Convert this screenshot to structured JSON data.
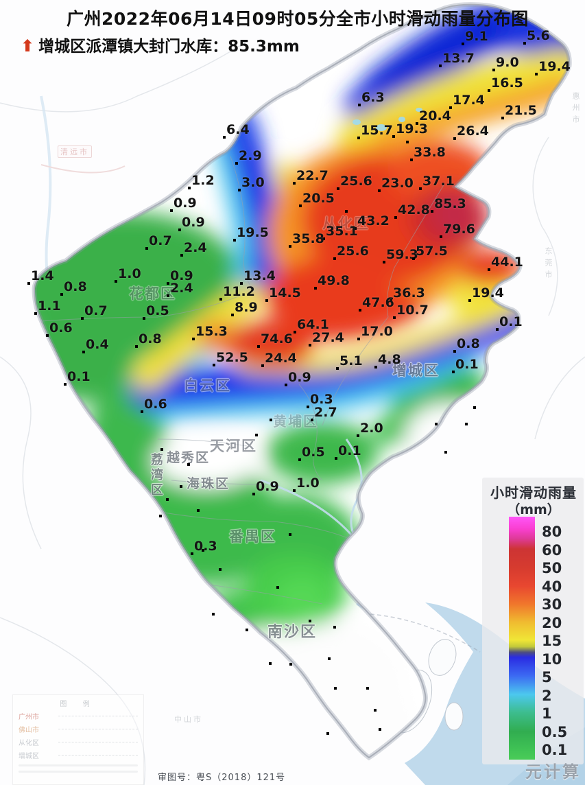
{
  "title": "广州2022年06月14日09时05分全市小时滑动雨量分布图",
  "subtitle": {
    "arrow": "⬆",
    "text": "增城区派潭镇大封门水库：85.3mm"
  },
  "legend": {
    "title": "小时滑动雨量",
    "unit": "（mm）",
    "ticks": [
      "80",
      "60",
      "50",
      "40",
      "30",
      "20",
      "15",
      "10",
      "5",
      "2",
      "1",
      "0.5",
      "0.1"
    ]
  },
  "colors": {
    "extreme": "#c22a4a",
    "heavy_red": "#e73a1f",
    "orange": "#f59426",
    "yellow": "#f0e238",
    "blue": "#2137ea",
    "dark_blue": "#1128d6",
    "cyan": "#4cc8ee",
    "green": "#3ab04a",
    "water": "#b9d6ea",
    "arrow_red": "#d4391c"
  },
  "stations": [
    [
      "9.1",
      678,
      43
    ],
    [
      "5.6",
      768,
      42
    ],
    [
      "13.7",
      645,
      75
    ],
    [
      "9.0",
      723,
      81
    ],
    [
      "19.4",
      785,
      87
    ],
    [
      "16.5",
      716,
      111
    ],
    [
      "6.3",
      527,
      132
    ],
    [
      "17.4",
      660,
      136
    ],
    [
      "21.5",
      736,
      151
    ],
    [
      "20.4",
      611,
      159
    ],
    [
      "19.3",
      577,
      178
    ],
    [
      "15.7",
      526,
      180
    ],
    [
      "26.4",
      666,
      181
    ],
    [
      "6.4",
      330,
      179
    ],
    [
      "33.8",
      603,
      212
    ],
    [
      "2.9",
      348,
      217
    ],
    [
      "22.7",
      432,
      246
    ],
    [
      "25.6",
      496,
      254
    ],
    [
      "23.0",
      556,
      257
    ],
    [
      "37.1",
      616,
      254
    ],
    [
      "1.2",
      279,
      253
    ],
    [
      "3.0",
      352,
      256
    ],
    [
      "20.5",
      441,
      279
    ],
    [
      "85.3",
      633,
      287
    ],
    [
      "42.8",
      580,
      296
    ],
    [
      "0.9",
      253,
      286
    ],
    [
      "43.2",
      521,
      312
    ],
    [
      "0.9",
      265,
      314
    ],
    [
      "35.1",
      475,
      327
    ],
    [
      "79.6",
      646,
      324
    ],
    [
      "35.8",
      426,
      338
    ],
    [
      "0.7",
      217,
      341
    ],
    [
      "2.4",
      268,
      351
    ],
    [
      "19.5",
      345,
      329
    ],
    [
      "25.6",
      491,
      356
    ],
    [
      "59.3",
      563,
      361
    ],
    [
      "57.5",
      606,
      356
    ],
    [
      "44.1",
      716,
      372
    ],
    [
      "1.4",
      45,
      392
    ],
    [
      "1.0",
      172,
      389
    ],
    [
      "0.9",
      248,
      392
    ],
    [
      "0.8",
      93,
      408
    ],
    [
      "2.4",
      248,
      410
    ],
    [
      "13.4",
      355,
      392
    ],
    [
      "49.8",
      463,
      399
    ],
    [
      "11.2",
      325,
      415
    ],
    [
      "14.5",
      392,
      417
    ],
    [
      "36.3",
      573,
      417
    ],
    [
      "19.4",
      688,
      417
    ],
    [
      "1.1",
      55,
      436
    ],
    [
      "0.7",
      123,
      443
    ],
    [
      "0.5",
      213,
      443
    ],
    [
      "8.9",
      342,
      438
    ],
    [
      "47.6",
      528,
      431
    ],
    [
      "10.7",
      578,
      442
    ],
    [
      "0.6",
      72,
      468
    ],
    [
      "15.3",
      285,
      473
    ],
    [
      "64.1",
      433,
      463
    ],
    [
      "17.0",
      526,
      473
    ],
    [
      "27.4",
      455,
      482
    ],
    [
      "0.1",
      728,
      459
    ],
    [
      "74.6",
      380,
      484
    ],
    [
      "0.8",
      202,
      484
    ],
    [
      "0.4",
      125,
      492
    ],
    [
      "52.5",
      315,
      511
    ],
    [
      "24.4",
      386,
      512
    ],
    [
      "5.1",
      495,
      516
    ],
    [
      "4.8",
      551,
      514
    ],
    [
      "0.8",
      666,
      491
    ],
    [
      "0.1",
      664,
      521
    ],
    [
      "0.1",
      98,
      539
    ],
    [
      "0.9",
      420,
      540
    ],
    [
      "0.6",
      210,
      579
    ],
    [
      "0.3",
      452,
      572
    ],
    [
      "2.7",
      458,
      591
    ],
    [
      "2.0",
      525,
      614
    ],
    [
      "0.5",
      440,
      649
    ],
    [
      "0.1",
      493,
      647
    ],
    [
      "0.9",
      373,
      699
    ],
    [
      "1.0",
      432,
      694
    ],
    [
      "0.3",
      283,
      786
    ]
  ],
  "extra_dots": [
    [
      503,
      306
    ],
    [
      592,
      205
    ],
    [
      690,
      592
    ],
    [
      678,
      616
    ],
    [
      634,
      616
    ],
    [
      648,
      657
    ],
    [
      403,
      854
    ],
    [
      309,
      893
    ],
    [
      358,
      916
    ],
    [
      450,
      903
    ],
    [
      486,
      912
    ],
    [
      478,
      958
    ],
    [
      392,
      965
    ],
    [
      422,
      966
    ],
    [
      487,
      1001
    ],
    [
      534,
      1001
    ],
    [
      545,
      1033
    ],
    [
      552,
      1061
    ],
    [
      476,
      1067
    ],
    [
      234,
      653
    ],
    [
      273,
      675
    ],
    [
      262,
      707
    ],
    [
      287,
      742
    ],
    [
      242,
      726
    ],
    [
      393,
      610
    ],
    [
      372,
      632
    ],
    [
      421,
      777
    ],
    [
      294,
      800
    ],
    [
      319,
      828
    ],
    [
      232,
      750
    ]
  ],
  "districts": [
    [
      "花都区",
      188,
      412,
      0.5,
      0,
      21
    ],
    [
      "从化区",
      470,
      310,
      0.35,
      0,
      21
    ],
    [
      "白云区",
      268,
      546,
      0.55,
      0,
      21
    ],
    [
      "增城区",
      572,
      524,
      0.75,
      0,
      21
    ],
    [
      "黄埔区",
      398,
      598,
      0.4,
      0,
      20
    ],
    [
      "天河区",
      306,
      634,
      0.7,
      0,
      21
    ],
    [
      "越秀区",
      243,
      652,
      0.8,
      0,
      19
    ],
    [
      "荔湾区",
      214,
      660,
      0.8,
      1,
      18
    ],
    [
      "海珠区",
      272,
      690,
      0.8,
      0,
      19
    ],
    [
      "番禺区",
      334,
      766,
      0.6,
      0,
      21
    ],
    [
      "南沙区",
      390,
      903,
      0.8,
      0,
      22
    ]
  ],
  "basemap_labels": [
    [
      "清远市",
      84,
      212,
      0,
      1
    ],
    [
      "惠州市",
      831,
      134,
      1,
      0
    ],
    [
      "东莞市",
      791,
      360,
      1,
      0
    ],
    [
      "中山市",
      254,
      1040,
      0,
      0
    ]
  ],
  "inset": {
    "title": "图 例",
    "rows": [
      [
        "广州市",
        "#c25648"
      ],
      [
        "佛山市",
        "#cf8a52"
      ],
      [
        "从化区",
        "#9aa0a8"
      ],
      [
        "增城区",
        "#9aa0a8"
      ]
    ]
  },
  "footer": {
    "approval": "审图号：粤S（2018）121号",
    "watermark": "元计算"
  }
}
